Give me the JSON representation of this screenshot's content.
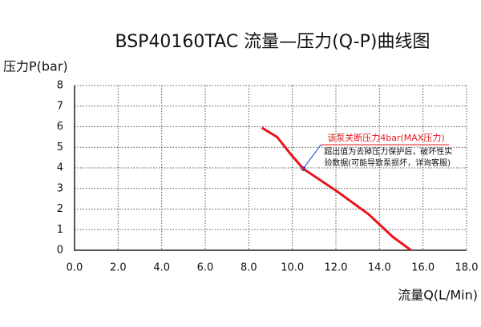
{
  "chart_data": {
    "type": "line",
    "title": "BSP40160TAC 流量—压力(Q-P)曲线图",
    "y_label": "压力P(bar)",
    "x_label": "流量Q(L/Min)",
    "x": [
      8.6,
      9.3,
      9.9,
      10.5,
      12.0,
      13.5,
      14.6,
      15.45
    ],
    "series": [
      {
        "color": "#e8141b",
        "values": [
          5.95,
          5.5,
          4.7,
          3.96,
          2.9,
          1.75,
          0.66,
          0
        ]
      }
    ],
    "xlim": [
      0,
      18
    ],
    "ylim": [
      0,
      8
    ],
    "xticks": [
      {
        "value": 0,
        "label": "0.0"
      },
      {
        "value": 2,
        "label": "2.0"
      },
      {
        "value": 4,
        "label": "4.0"
      },
      {
        "value": 6,
        "label": "6.0"
      },
      {
        "value": 8,
        "label": "8.0"
      },
      {
        "value": 10,
        "label": "10.0"
      },
      {
        "value": 12,
        "label": "12.0"
      },
      {
        "value": 14,
        "label": "14.0"
      },
      {
        "value": 16,
        "label": "16.0"
      },
      {
        "value": 18,
        "label": "18.0"
      }
    ],
    "yticks": [
      0,
      1,
      2,
      3,
      4,
      5,
      6,
      7,
      8
    ],
    "grid": true,
    "annotation": {
      "x": 10.5,
      "y": 3.96,
      "title": "该泵关断压力4bar(MAX压力)",
      "title_color": "#e8141b",
      "pointer_color": "#1f3fd0",
      "note": [
        "超出值为去掉压力保护后，破坏性实",
        "验数据(可能导致泵损坏，详询客服)"
      ]
    }
  }
}
